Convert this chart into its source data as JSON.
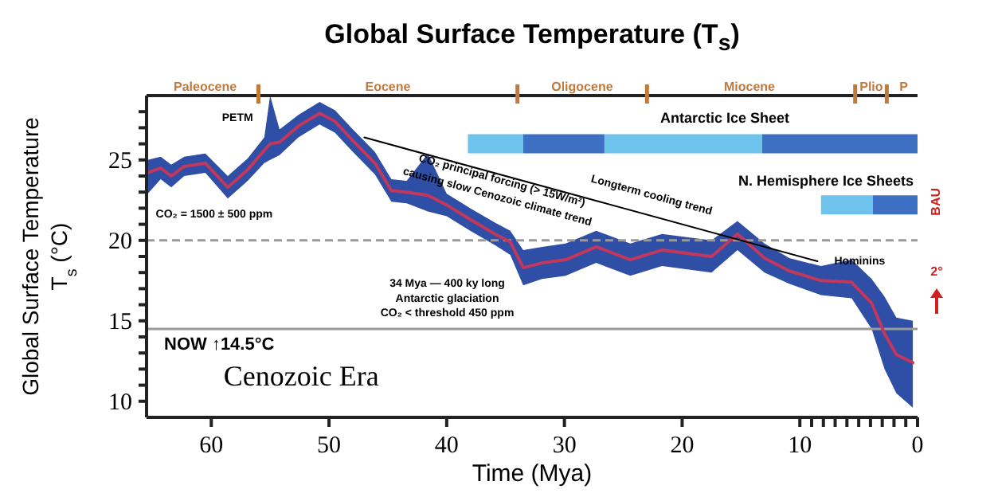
{
  "chart_data": {
    "type": "line",
    "title": "Global Surface Temperature (T$_{s}$)",
    "xlabel": "Time (Mya)",
    "ylabel": "Global Surface Temperature\nT$_{s}$ (°C)",
    "xlim": [
      65.5,
      0
    ],
    "xticks": [
      60,
      50,
      40,
      30,
      20,
      10,
      {
        "value": 9,
        "label": null
      },
      {
        "value": 8,
        "label": null
      },
      {
        "value": 7,
        "label": null
      },
      {
        "value": 6,
        "label": null
      },
      {
        "value": 5,
        "label": null
      },
      {
        "value": 4,
        "label": null
      },
      {
        "value": 3,
        "label": null
      },
      {
        "value": 2,
        "label": null
      },
      {
        "value": 1,
        "label": null
      },
      0
    ],
    "ylim": [
      9,
      29
    ],
    "yticks": [
      10,
      {
        "value": 11,
        "label": null
      },
      {
        "value": 12,
        "label": null
      },
      {
        "value": 13,
        "label": null
      },
      {
        "value": 14,
        "label": null
      },
      15,
      {
        "value": 16,
        "label": null
      },
      {
        "value": 17,
        "label": null
      },
      {
        "value": 18,
        "label": null
      },
      {
        "value": 19,
        "label": null
      },
      20,
      {
        "value": 21,
        "label": null
      },
      {
        "value": 22,
        "label": null
      },
      {
        "value": 23,
        "label": null
      },
      {
        "value": 24,
        "label": null
      },
      25,
      {
        "value": 26,
        "label": null
      },
      {
        "value": 27,
        "label": null
      },
      {
        "value": 28,
        "label": null
      }
    ],
    "marker": "none",
    "series": [
      {
        "color": "#c2375c",
        "x": [
          65.4,
          64.3,
          63.4,
          62.3,
          60.5,
          58.6,
          56.9,
          55.5,
          55.0,
          54.2,
          52.6,
          50.8,
          49.5,
          48.1,
          46.1,
          44.7,
          43.4,
          41.6,
          40.0,
          38.0,
          35.9,
          34.6,
          33.5,
          31.9,
          29.9,
          27.3,
          24.4,
          21.7,
          17.5,
          15.3,
          13.0,
          10.9,
          8.2,
          5.6,
          3.9,
          2.8,
          1.8,
          0.4
        ],
        "values": [
          24.2,
          24.5,
          24.0,
          24.6,
          24.8,
          23.3,
          24.4,
          25.6,
          26.0,
          26.1,
          27.1,
          27.9,
          27.4,
          26.3,
          24.8,
          23.1,
          23.0,
          22.8,
          22.2,
          21.3,
          20.4,
          19.9,
          18.3,
          18.6,
          18.8,
          19.6,
          18.8,
          19.4,
          19.0,
          20.4,
          18.9,
          18.1,
          17.5,
          17.4,
          16.1,
          14.2,
          12.9,
          12.4
        ],
        "lower": [
          22.9,
          23.8,
          23.3,
          24.0,
          24.2,
          22.6,
          23.7,
          24.8,
          25.0,
          25.3,
          26.4,
          27.2,
          26.7,
          25.6,
          24.1,
          22.4,
          22.3,
          21.8,
          21.5,
          20.6,
          19.7,
          19.1,
          17.2,
          17.6,
          17.8,
          18.6,
          17.8,
          18.4,
          18.0,
          19.4,
          18.0,
          17.3,
          16.6,
          16.4,
          14.5,
          12.0,
          10.5,
          9.6
        ],
        "upper": [
          25.0,
          25.2,
          24.7,
          25.2,
          25.4,
          24.0,
          25.1,
          26.4,
          29.0,
          26.9,
          27.8,
          28.6,
          28.1,
          27.0,
          25.5,
          23.8,
          23.7,
          25.4,
          22.9,
          22.0,
          21.1,
          20.6,
          19.4,
          19.6,
          19.8,
          20.6,
          19.8,
          20.4,
          20.0,
          21.2,
          19.8,
          18.9,
          18.4,
          18.8,
          17.6,
          16.5,
          15.2,
          15.0
        ]
      },
      {
        "color": "#000000",
        "x": [
          47,
          8.5
        ],
        "values": [
          26.4,
          18.7
        ]
      },
      {
        "color": "#6ec3ec",
        "x": [
          38.2,
          33.5
        ],
        "values": [
          26.0,
          26.0
        ]
      },
      {
        "color": "#3d6fc2",
        "x": [
          33.5,
          26.6
        ],
        "values": [
          26.0,
          26.0
        ]
      },
      {
        "color": "#6ec3ec",
        "x": [
          26.6,
          13.2
        ],
        "values": [
          26.0,
          26.0
        ]
      },
      {
        "color": "#3d6fc2",
        "x": [
          13.2,
          0
        ],
        "values": [
          26.0,
          26.0
        ]
      },
      {
        "color": "#6ec3ec",
        "x": [
          8.2,
          3.8
        ],
        "values": [
          22.2,
          22.2
        ]
      },
      {
        "color": "#3d6fc2",
        "x": [
          3.8,
          0
        ],
        "values": [
          22.2,
          22.2
        ]
      }
    ],
    "ref_lines": [
      {
        "axis": "y",
        "value": 14.5,
        "label": "NOW ↑14.5°C",
        "color": "#9a9a9a"
      },
      {
        "axis": "y",
        "value": 20,
        "label": null,
        "color": "#9a9a9a",
        "line_style": "dashed"
      }
    ],
    "annotations": [
      "Paleocene",
      "Eocene",
      "Oligocene",
      "Miocene",
      "Plio",
      "P",
      "PETM",
      "CO₂ = 1500 ± 500 ppm",
      "CO₂ principal forcing (> 15W/m²)",
      "causing slow Cenozoic climate trend",
      "Longterm cooling trend",
      "Antarctic Ice Sheet",
      "N. Hemisphere Ice Sheets",
      "34 Mya — 400 ky long",
      "Antarctic glaciation",
      "CO₂ < threshold 450 ppm",
      "Hominins",
      "Cenozoic Era",
      "BAU",
      "2°"
    ]
  }
}
